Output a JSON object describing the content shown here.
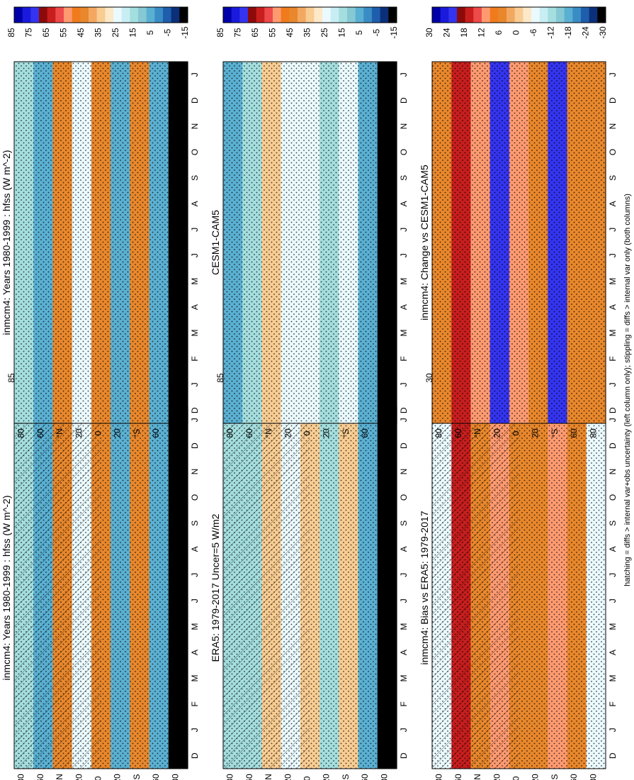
{
  "figure": {
    "caption": "hatching = diffs > internal var+obs uncertainty (left column only); stippling = diffs > internal var only (both columns)"
  },
  "chart_data": [
    {
      "type": "heatmap",
      "id": "p1",
      "title": "inmcm4: Years 1980-1999 : hfss (W m",
      "title_sup": "-2",
      "title_tail": ")",
      "x_ticks": [
        "D",
        "J",
        "F",
        "M",
        "A",
        "M",
        "J",
        "J",
        "A",
        "S",
        "O",
        "N",
        "D",
        "J"
      ],
      "y_ticks": [
        "80",
        "60",
        "°N",
        "20",
        "0",
        "20",
        "°S",
        "60",
        "80"
      ],
      "colorbar": {
        "labels": [
          "85",
          "75",
          "65",
          "55",
          "45",
          "35",
          "25",
          "15",
          "5",
          "-5",
          "-15"
        ],
        "colors": [
          "#0000a8",
          "#1a1adc",
          "#3434f0",
          "#8c0a0a",
          "#c81e1e",
          "#ee4a4a",
          "#ff9a70",
          "#f07b1d",
          "#e8872c",
          "#f3a861",
          "#f8cc92",
          "#fde8c8",
          "#eafaff",
          "#c8eef4",
          "#a4dedf",
          "#86c8d4",
          "#5ab0d2",
          "#3a8cc4",
          "#1e5eac",
          "#0c2f7a",
          "#000000"
        ]
      },
      "stats": {
        "range": [
          -15,
          85
        ],
        "zonal_profile_top_to_bottom": [
          15,
          5,
          45,
          25,
          45,
          5,
          45,
          5,
          -15
        ]
      },
      "hatching": true,
      "stippling": true
    },
    {
      "type": "heatmap",
      "id": "p2",
      "title": "inmcm4: Years 1980-1999 : hfss (W m",
      "title_sup": "-2",
      "title_tail": ")",
      "x_ticks": [
        "D",
        "J",
        "F",
        "M",
        "A",
        "M",
        "J",
        "J",
        "A",
        "S",
        "O",
        "N",
        "D",
        "J"
      ],
      "y_ticks": [
        "80",
        "60",
        "°N",
        "20",
        "0",
        "20",
        "°S",
        "60",
        "80"
      ],
      "colorbar": {
        "labels": [
          "85",
          "75",
          "65",
          "55",
          "45",
          "35",
          "25",
          "15",
          "5",
          "-5",
          "-15"
        ],
        "colors": [
          "#0000a8",
          "#1a1adc",
          "#3434f0",
          "#8c0a0a",
          "#c81e1e",
          "#ee4a4a",
          "#ff9a70",
          "#f07b1d",
          "#e8872c",
          "#f3a861",
          "#f8cc92",
          "#fde8c8",
          "#eafaff",
          "#c8eef4",
          "#a4dedf",
          "#86c8d4",
          "#5ab0d2",
          "#3a8cc4",
          "#1e5eac",
          "#0c2f7a",
          "#000000"
        ]
      },
      "stats": {
        "range": [
          -15,
          85
        ],
        "zonal_profile_top_to_bottom": [
          15,
          5,
          45,
          25,
          45,
          5,
          45,
          5,
          -15
        ]
      },
      "hatching": false,
      "stippling": true
    },
    {
      "type": "heatmap",
      "id": "p3",
      "title": "ERA5: 1979-2017 Uncer=5 W/m2",
      "x_ticks": [
        "D",
        "J",
        "F",
        "M",
        "A",
        "M",
        "J",
        "J",
        "A",
        "S",
        "O",
        "N",
        "D",
        "J"
      ],
      "y_ticks": [
        "80",
        "60",
        "°N",
        "20",
        "0",
        "20",
        "°S",
        "60",
        "80"
      ],
      "colorbar": {
        "labels": [
          "85",
          "75",
          "65",
          "55",
          "45",
          "35",
          "25",
          "15",
          "5",
          "-5",
          "-15"
        ],
        "colors": [
          "#0000a8",
          "#1a1adc",
          "#3434f0",
          "#8c0a0a",
          "#c81e1e",
          "#ee4a4a",
          "#ff9a70",
          "#f07b1d",
          "#e8872c",
          "#f3a861",
          "#f8cc92",
          "#fde8c8",
          "#eafaff",
          "#c8eef4",
          "#a4dedf",
          "#86c8d4",
          "#5ab0d2",
          "#3a8cc4",
          "#1e5eac",
          "#0c2f7a",
          "#000000"
        ]
      },
      "stats": {
        "range": [
          -15,
          85
        ],
        "zonal_profile_top_to_bottom": [
          15,
          15,
          35,
          25,
          35,
          15,
          35,
          5,
          -15
        ]
      },
      "hatching": true,
      "stippling": true
    },
    {
      "type": "heatmap",
      "id": "p4",
      "title": "CESM1-CAM5",
      "x_ticks": [
        "D",
        "J",
        "F",
        "M",
        "A",
        "M",
        "J",
        "J",
        "A",
        "S",
        "O",
        "N",
        "D",
        "J"
      ],
      "y_ticks": [
        "80",
        "60",
        "°N",
        "20",
        "0",
        "20",
        "°S",
        "60",
        "80"
      ],
      "colorbar": {
        "labels": [
          "85",
          "75",
          "65",
          "55",
          "45",
          "35",
          "25",
          "15",
          "5",
          "-5",
          "-15"
        ],
        "colors": [
          "#0000a8",
          "#1a1adc",
          "#3434f0",
          "#8c0a0a",
          "#c81e1e",
          "#ee4a4a",
          "#ff9a70",
          "#f07b1d",
          "#e8872c",
          "#f3a861",
          "#f8cc92",
          "#fde8c8",
          "#eafaff",
          "#c8eef4",
          "#a4dedf",
          "#86c8d4",
          "#5ab0d2",
          "#3a8cc4",
          "#1e5eac",
          "#0c2f7a",
          "#000000"
        ]
      },
      "stats": {
        "range": [
          -15,
          85
        ],
        "zonal_profile_top_to_bottom": [
          5,
          15,
          35,
          25,
          25,
          15,
          25,
          5,
          -15
        ]
      },
      "hatching": false,
      "stippling": true
    },
    {
      "type": "heatmap",
      "id": "p5",
      "title": "inmcm4: Bias vs ERA5: 1979-2017",
      "x_ticks": [
        "D",
        "J",
        "F",
        "M",
        "A",
        "M",
        "J",
        "J",
        "A",
        "S",
        "O",
        "N",
        "D",
        "J"
      ],
      "y_ticks": [
        "80",
        "60",
        "°N",
        "20",
        "0",
        "20",
        "°S",
        "60",
        "80"
      ],
      "colorbar": {
        "labels": [
          "30",
          "24",
          "18",
          "12",
          "6",
          "0",
          "-6",
          "-12",
          "-18",
          "-24",
          "-30"
        ],
        "colors": [
          "#0000a8",
          "#1a1adc",
          "#3434f0",
          "#8c0a0a",
          "#c81e1e",
          "#ee4a4a",
          "#ff9a70",
          "#f07b1d",
          "#e8872c",
          "#f3a861",
          "#f8cc92",
          "#fde8c8",
          "#eafaff",
          "#c8eef4",
          "#a4dedf",
          "#86c8d4",
          "#5ab0d2",
          "#3a8cc4",
          "#1e5eac",
          "#0c2f7a",
          "#000000"
        ]
      },
      "stats": {
        "range": [
          -30,
          30
        ],
        "zonal_profile_top_to_bottom": [
          -6,
          18,
          6,
          12,
          6,
          6,
          12,
          6,
          -6
        ]
      },
      "hatching": true,
      "stippling": true
    },
    {
      "type": "heatmap",
      "id": "p6",
      "title": "inmcm4: Change vs CESM1-CAM5",
      "x_ticks": [
        "D",
        "J",
        "F",
        "M",
        "A",
        "M",
        "J",
        "J",
        "A",
        "S",
        "O",
        "N",
        "D",
        "J"
      ],
      "y_ticks": [
        "80",
        "60",
        "°N",
        "20",
        "0",
        "20",
        "°S",
        "60",
        "80"
      ],
      "colorbar": {
        "labels": [
          "30",
          "24",
          "18",
          "12",
          "6",
          "0",
          "-6",
          "-12",
          "-18",
          "-24",
          "-30"
        ],
        "colors": [
          "#0000a8",
          "#1a1adc",
          "#3434f0",
          "#8c0a0a",
          "#c81e1e",
          "#ee4a4a",
          "#ff9a70",
          "#f07b1d",
          "#e8872c",
          "#f3a861",
          "#f8cc92",
          "#fde8c8",
          "#eafaff",
          "#c8eef4",
          "#a4dedf",
          "#86c8d4",
          "#5ab0d2",
          "#3a8cc4",
          "#1e5eac",
          "#0c2f7a",
          "#000000"
        ]
      },
      "stats": {
        "range": [
          -30,
          30
        ],
        "zonal_profile_top_to_bottom": [
          6,
          18,
          12,
          24,
          12,
          6,
          24,
          6,
          6
        ]
      },
      "hatching": false,
      "stippling": true
    }
  ]
}
